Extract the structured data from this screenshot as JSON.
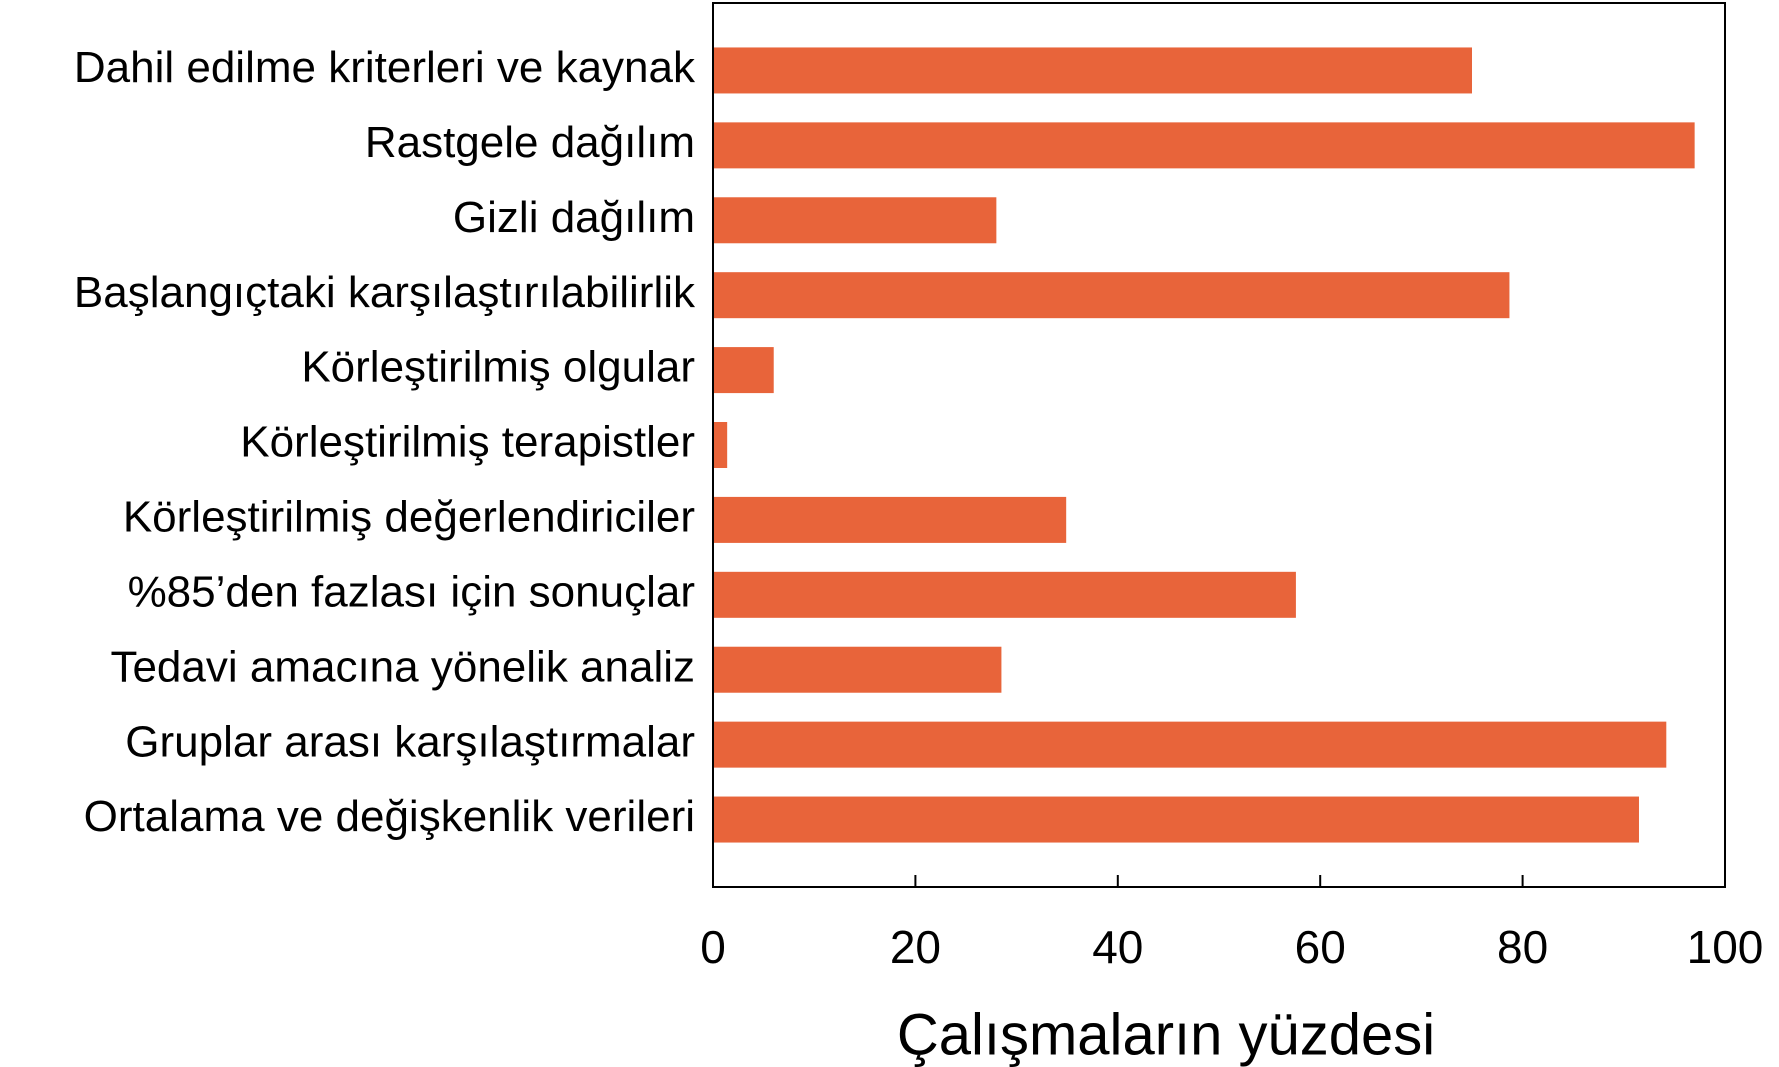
{
  "chart_data": {
    "type": "bar",
    "orientation": "horizontal",
    "x_label": "Çalışmaların yüzdesi",
    "categories": [
      "Dahil edilme kriterleri ve kaynak",
      "Rastgele dağılım",
      "Gizli dağılım",
      "Başlangıçtaki karşılaştırılabilirlik",
      "Körleştirilmiş olgular",
      "Körleştirilmiş terapistler",
      "Körleştirilmiş değerlendiriciler",
      "%85’den fazlası için sonuçlar",
      "Tedavi amacına yönelik analiz",
      "Gruplar arası karşılaştırmalar",
      "Ortalama ve değişkenlik verileri"
    ],
    "values": [
      75,
      97,
      28,
      78.7,
      6,
      1.4,
      34.9,
      57.6,
      28.5,
      94.2,
      91.5
    ],
    "color": "#e8643a",
    "xlim": [
      0,
      100
    ],
    "xticks": [
      0,
      20,
      40,
      60,
      80,
      100
    ],
    "grid": false
  }
}
